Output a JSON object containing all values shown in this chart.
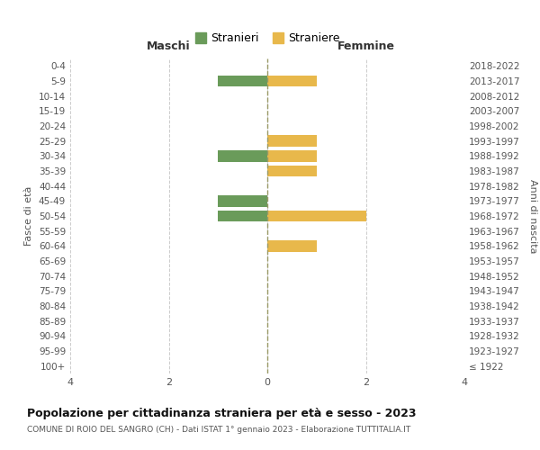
{
  "age_groups": [
    "100+",
    "95-99",
    "90-94",
    "85-89",
    "80-84",
    "75-79",
    "70-74",
    "65-69",
    "60-64",
    "55-59",
    "50-54",
    "45-49",
    "40-44",
    "35-39",
    "30-34",
    "25-29",
    "20-24",
    "15-19",
    "10-14",
    "5-9",
    "0-4"
  ],
  "birth_years": [
    "≤ 1922",
    "1923-1927",
    "1928-1932",
    "1933-1937",
    "1938-1942",
    "1943-1947",
    "1948-1952",
    "1953-1957",
    "1958-1962",
    "1963-1967",
    "1968-1972",
    "1973-1977",
    "1978-1982",
    "1983-1987",
    "1988-1992",
    "1993-1997",
    "1998-2002",
    "2003-2007",
    "2008-2012",
    "2013-2017",
    "2018-2022"
  ],
  "males": [
    0,
    0,
    0,
    0,
    0,
    0,
    0,
    0,
    0,
    0,
    1,
    1,
    0,
    0,
    1,
    0,
    0,
    0,
    0,
    1,
    0
  ],
  "females": [
    0,
    0,
    0,
    0,
    0,
    0,
    0,
    0,
    1,
    0,
    2,
    0,
    0,
    1,
    1,
    1,
    0,
    0,
    0,
    1,
    0
  ],
  "male_color": "#6a9b5a",
  "female_color": "#e8b84b",
  "xlim": 4,
  "title": "Popolazione per cittadinanza straniera per età e sesso - 2023",
  "subtitle": "COMUNE DI ROIO DEL SANGRO (CH) - Dati ISTAT 1° gennaio 2023 - Elaborazione TUTTITALIA.IT",
  "legend_male": "Stranieri",
  "legend_female": "Straniere",
  "xlabel_left": "Maschi",
  "xlabel_right": "Femmine",
  "ylabel_left": "Fasce di età",
  "ylabel_right": "Anni di nascita",
  "bg_color": "#ffffff",
  "grid_color": "#cccccc",
  "bar_height": 0.75
}
